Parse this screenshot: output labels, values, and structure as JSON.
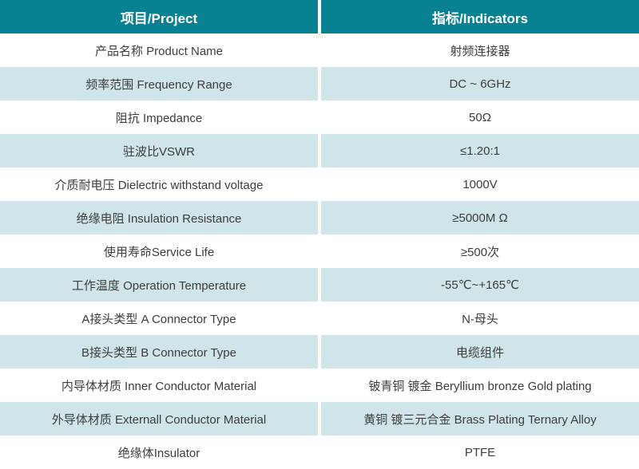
{
  "table": {
    "header": {
      "project": "项目/Project",
      "indicators": "指标/Indicators"
    },
    "rows": [
      {
        "project": "产品名称 Product Name",
        "indicator": "射频连接器"
      },
      {
        "project": "频率范围 Frequency Range",
        "indicator": "DC ~ 6GHz"
      },
      {
        "project": "阻抗 Impedance",
        "indicator": "50Ω"
      },
      {
        "project": "驻波比VSWR",
        "indicator": "≤1.20:1"
      },
      {
        "project": "介质耐电压 Dielectric withstand voltage",
        "indicator": "1000V"
      },
      {
        "project": "绝缘电阻 Insulation Resistance",
        "indicator": "≥5000M Ω"
      },
      {
        "project": "使用寿命Service Life",
        "indicator": "≥500次"
      },
      {
        "project": "工作温度 Operation Temperature",
        "indicator": "-55℃~+165℃"
      },
      {
        "project": "A接头类型 A Connector Type",
        "indicator": "N-母头"
      },
      {
        "project": "B接头类型 B Connector Type",
        "indicator": "电缆组件"
      },
      {
        "project": "内导体材质 Inner Conductor Material",
        "indicator": "铍青铜 镀金 Beryllium bronze Gold plating"
      },
      {
        "project": "外导体材质 Externall Conductor Material",
        "indicator": "黄铜 镀三元合金 Brass Plating Ternary Alloy"
      },
      {
        "project": "绝缘体Insulator",
        "indicator": "PTFE"
      }
    ]
  },
  "colors": {
    "header_bg": "#088293",
    "header_text": "#ffffff",
    "row_alt_bg": "#d0e5e9",
    "text_color": "#3d3d3d",
    "divider": "#ffffff"
  }
}
